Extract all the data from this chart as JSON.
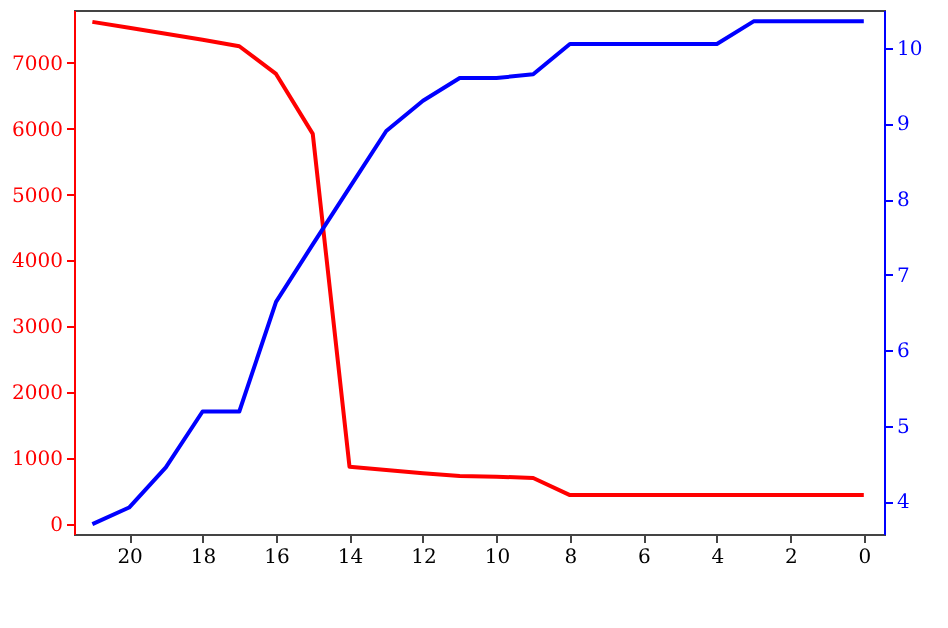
{
  "chart_data": {
    "type": "line",
    "x": [
      21,
      20,
      19,
      18,
      17,
      16,
      15,
      14,
      13,
      12,
      11,
      10,
      9,
      8,
      7,
      6,
      5,
      4,
      3,
      2,
      1,
      0
    ],
    "series": [
      {
        "color": "#ff0000",
        "values": [
          7620,
          7530,
          7440,
          7350,
          7250,
          6830,
          5920,
          870,
          820,
          770,
          730,
          720,
          700,
          440,
          440,
          440,
          440,
          440,
          440,
          440,
          440,
          440
        ]
      },
      {
        "color": "#0000ff",
        "axis": "y2",
        "values": [
          3.7,
          3.92,
          4.45,
          5.19,
          5.19,
          6.64,
          7.4,
          8.15,
          8.9,
          9.3,
          9.6,
          9.6,
          9.65,
          10.05,
          10.05,
          10.05,
          10.05,
          10.05,
          10.35,
          10.35,
          10.35,
          10.35
        ]
      }
    ],
    "xlim": [
      21.5,
      -0.55
    ],
    "xticks": [
      20,
      18,
      16,
      14,
      12,
      10,
      8,
      6,
      4,
      2,
      0
    ],
    "ylim": [
      -150,
      7800
    ],
    "yticks": [
      0,
      1000,
      2000,
      3000,
      4000,
      5000,
      6000,
      7000
    ],
    "y2lim": [
      3.57,
      10.5
    ],
    "y2ticks": [
      4,
      5,
      6,
      7,
      8,
      9,
      10
    ],
    "grid": false,
    "marker": "none",
    "line_style": "solid"
  }
}
